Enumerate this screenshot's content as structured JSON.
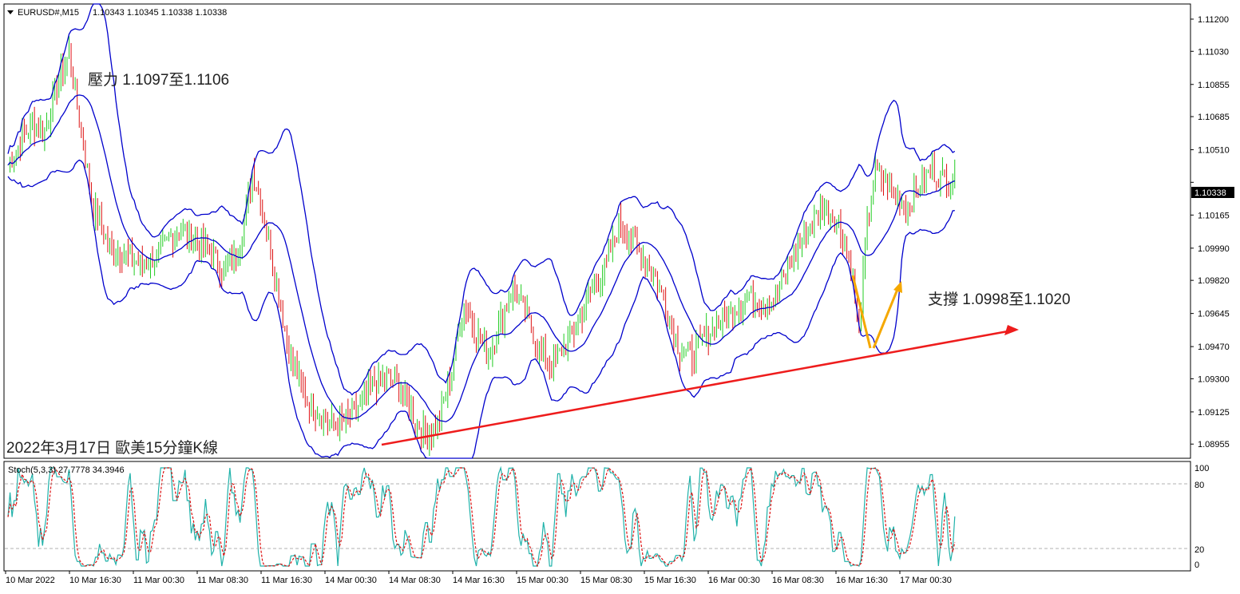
{
  "header": {
    "symbol": "EURUSD#,M15",
    "ohlc": "1.10343 1.10345 1.10338 1.10338"
  },
  "annotations": {
    "resistance": "壓力 1.1097至1.1106",
    "support": "支撐 1.0998至1.1020",
    "caption": "2022年3月17日 歐美15分鐘K線"
  },
  "price_axis": {
    "ticks": [
      "1.11200",
      "1.11030",
      "1.10855",
      "1.10685",
      "1.10510",
      "1.10338",
      "1.10165",
      "1.09990",
      "1.09820",
      "1.09645",
      "1.09470",
      "1.09300",
      "1.09125",
      "1.08955"
    ],
    "current": "1.10338"
  },
  "time_axis": {
    "labels": [
      "10 Mar 2022",
      "10 Mar 16:30",
      "11 Mar 00:30",
      "11 Mar 08:30",
      "11 Mar 16:30",
      "14 Mar 00:30",
      "14 Mar 08:30",
      "14 Mar 16:30",
      "15 Mar 00:30",
      "15 Mar 08:30",
      "15 Mar 16:30",
      "16 Mar 00:30",
      "16 Mar 08:30",
      "16 Mar 16:30",
      "17 Mar 00:30"
    ]
  },
  "stoch": {
    "label": "Stoch(5,3,3) 27.7778 34.3946",
    "levels": [
      "100",
      "80",
      "20",
      "0"
    ]
  },
  "colors": {
    "up": "#22cc22",
    "down": "#dd1111",
    "band": "#0000cc",
    "trend": "#ee1c1c",
    "arrow": "#f5a800",
    "stoch_main": "#20b2aa",
    "stoch_signal": "#dd1111"
  },
  "chart_data": {
    "type": "candlestick",
    "timeframe": "M15",
    "ylim": [
      1.0888,
      1.1128
    ],
    "indicators": [
      "Bollinger Bands",
      "Stochastic(5,3,3)"
    ],
    "path_keypoints": [
      [
        0,
        1.1043
      ],
      [
        6,
        1.1055
      ],
      [
        12,
        1.1065
      ],
      [
        18,
        1.106
      ],
      [
        24,
        1.1085
      ],
      [
        30,
        1.1102
      ],
      [
        36,
        1.106
      ],
      [
        42,
        1.102
      ],
      [
        50,
        1.1
      ],
      [
        58,
        1.0995
      ],
      [
        66,
        1.099
      ],
      [
        74,
        1.0995
      ],
      [
        82,
        1.1008
      ],
      [
        90,
        1.1005
      ],
      [
        98,
        1.1
      ],
      [
        106,
        1.0985
      ],
      [
        114,
        1.1
      ],
      [
        120,
        1.104
      ],
      [
        126,
        1.1015
      ],
      [
        132,
        1.098
      ],
      [
        138,
        1.0945
      ],
      [
        146,
        1.092
      ],
      [
        154,
        1.091
      ],
      [
        162,
        1.0905
      ],
      [
        170,
        1.0912
      ],
      [
        178,
        1.0925
      ],
      [
        186,
        1.0932
      ],
      [
        194,
        1.0922
      ],
      [
        200,
        1.0908
      ],
      [
        206,
        1.09
      ],
      [
        212,
        1.0908
      ],
      [
        218,
        1.0935
      ],
      [
        224,
        1.097
      ],
      [
        230,
        1.0955
      ],
      [
        236,
        1.0942
      ],
      [
        242,
        1.096
      ],
      [
        248,
        1.0978
      ],
      [
        254,
        1.0965
      ],
      [
        260,
        1.0948
      ],
      [
        266,
        1.0935
      ],
      [
        272,
        1.0945
      ],
      [
        278,
        1.0955
      ],
      [
        286,
        1.0975
      ],
      [
        294,
        1.099
      ],
      [
        300,
        1.1012
      ],
      [
        306,
        1.1005
      ],
      [
        312,
        1.0995
      ],
      [
        318,
        1.0985
      ],
      [
        324,
        1.0965
      ],
      [
        330,
        1.0945
      ],
      [
        336,
        1.0942
      ],
      [
        342,
        1.0952
      ],
      [
        350,
        1.096
      ],
      [
        358,
        1.0968
      ],
      [
        364,
        1.0975
      ],
      [
        370,
        1.0968
      ],
      [
        376,
        1.0972
      ],
      [
        382,
        1.0985
      ],
      [
        388,
        1.1
      ],
      [
        394,
        1.1012
      ],
      [
        400,
        1.102
      ],
      [
        406,
        1.1015
      ],
      [
        410,
        1.1005
      ],
      [
        414,
        1.099
      ],
      [
        418,
        1.0955
      ],
      [
        422,
        1.101
      ],
      [
        426,
        1.104
      ],
      [
        430,
        1.1035
      ],
      [
        436,
        1.1028
      ],
      [
        442,
        1.102
      ],
      [
        448,
        1.1032
      ],
      [
        454,
        1.104
      ],
      [
        460,
        1.1035
      ],
      [
        465,
        1.1034
      ]
    ],
    "stoch_current": [
      27.7778,
      34.3946
    ],
    "stoch_levels": [
      20,
      80
    ]
  }
}
